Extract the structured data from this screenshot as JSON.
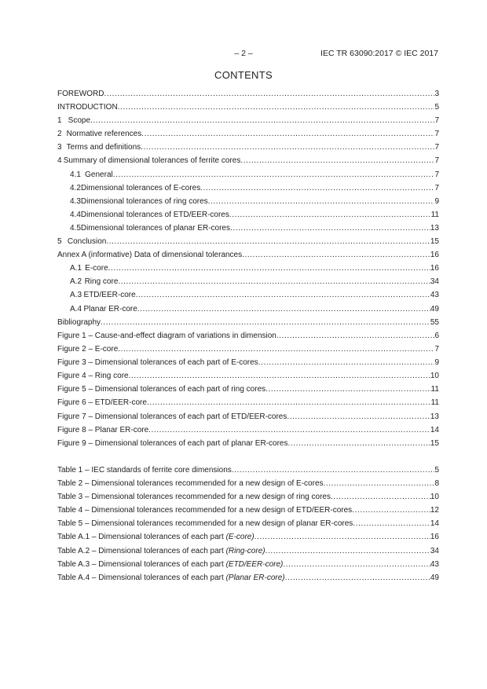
{
  "header": {
    "page_number": "– 2 –",
    "document_id": "IEC TR 63090:2017 © IEC 2017"
  },
  "title": "CONTENTS",
  "contents": [
    {
      "num": "",
      "title": "FOREWORD",
      "page": "3",
      "level": 0
    },
    {
      "num": "",
      "title": "INTRODUCTION",
      "page": "5",
      "level": 0
    },
    {
      "num": "1",
      "title": "Scope",
      "page": "7",
      "level": 1
    },
    {
      "num": "2",
      "title": "Normative references",
      "page": "7",
      "level": 1
    },
    {
      "num": "3",
      "title": "Terms and definitions",
      "page": "7",
      "level": 1
    },
    {
      "num": "4",
      "title": "Summary of dimensional tolerances of ferrite cores",
      "page": "7",
      "level": 1
    },
    {
      "num": "4.1",
      "title": "General",
      "page": "7",
      "level": 2
    },
    {
      "num": "4.2",
      "title": "Dimensional tolerances of E-cores",
      "page": "7",
      "level": 2
    },
    {
      "num": "4.3",
      "title": "Dimensional tolerances of ring cores",
      "page": "9",
      "level": 2
    },
    {
      "num": "4.4",
      "title": "Dimensional tolerances of ETD/EER-cores",
      "page": "11",
      "level": 2
    },
    {
      "num": "4.5",
      "title": "Dimensional tolerances of planar ER-cores",
      "page": "13",
      "level": 2
    },
    {
      "num": "5",
      "title": "Conclusion",
      "page": "15",
      "level": 1
    },
    {
      "num": "",
      "title": "Annex A (informative)  Data of dimensional tolerances",
      "page": "16",
      "level": 0
    },
    {
      "num": "A.1",
      "title": "E-core",
      "page": "16",
      "level": 2
    },
    {
      "num": "A.2",
      "title": "Ring core",
      "page": "34",
      "level": 2
    },
    {
      "num": "A.3",
      "title": "ETD/EER-core",
      "page": "43",
      "level": 2
    },
    {
      "num": "A.4",
      "title": "Planar ER-core",
      "page": "49",
      "level": 2
    },
    {
      "num": "",
      "title": "Bibliography",
      "page": "55",
      "level": 0
    }
  ],
  "figures": [
    {
      "title": "Figure 1 – Cause-and-effect diagram of variations in dimension",
      "page": "6"
    },
    {
      "title": "Figure 2 – E-core",
      "page": "7"
    },
    {
      "title": "Figure 3 – Dimensional tolerances of each part of E-cores",
      "page": "9"
    },
    {
      "title": "Figure 4 – Ring core",
      "page": "10"
    },
    {
      "title": "Figure 5 – Dimensional tolerances of each part of ring cores",
      "page": "11"
    },
    {
      "title": "Figure 6 – ETD/EER-core",
      "page": "11"
    },
    {
      "title": "Figure 7 – Dimensional tolerances of each part of ETD/EER-cores",
      "page": "13"
    },
    {
      "title": "Figure 8 – Planar ER-core",
      "page": "14"
    },
    {
      "title": "Figure 9 – Dimensional tolerances of each part of planar ER-cores",
      "page": "15"
    }
  ],
  "tables": [
    {
      "title": "Table 1 – IEC standards of ferrite core dimensions",
      "italic": "",
      "page": "5"
    },
    {
      "title": "Table 2 – Dimensional tolerances recommended  for a new design of E-cores",
      "italic": "",
      "page": "8"
    },
    {
      "title": "Table 3 – Dimensional tolerances recommended  for a new design of ring cores",
      "italic": "",
      "page": "10"
    },
    {
      "title": "Table 4 – Dimensional tolerances recommended  for a new design of ETD/EER-cores",
      "italic": "",
      "page": "12"
    },
    {
      "title": "Table 5 – Dimensional tolerances recommended  for a new design of planar ER-cores",
      "italic": "",
      "page": "14"
    },
    {
      "title": "Table A.1 – Dimensional tolerances of each part ",
      "italic": "(E-core)",
      "page": "16"
    },
    {
      "title": "Table A.2 – Dimensional tolerances of each part ",
      "italic": "(Ring-core)",
      "page": "34"
    },
    {
      "title": "Table A.3 – Dimensional tolerances of each part ",
      "italic": "(ETD/EER-core)",
      "page": "43"
    },
    {
      "title": "Table A.4 – Dimensional tolerances of each part ",
      "italic": "(Planar ER-core)",
      "page": "49"
    }
  ]
}
